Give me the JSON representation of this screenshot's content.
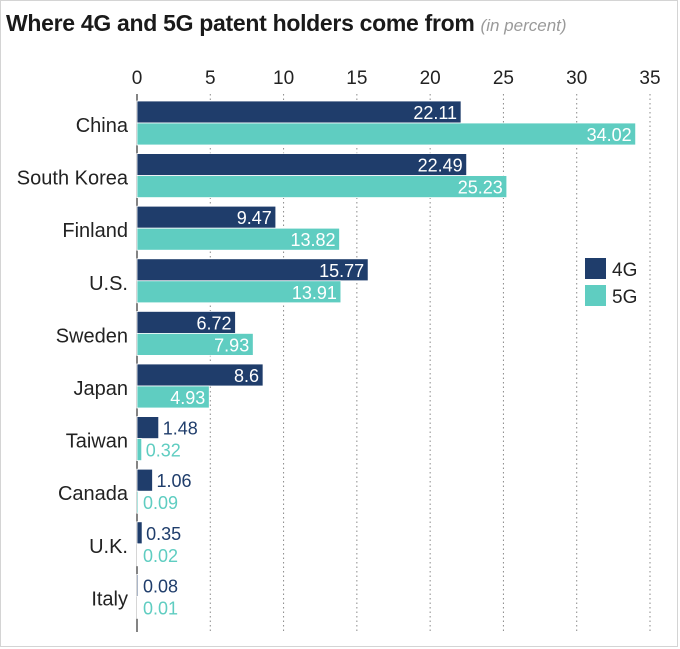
{
  "chart_data": {
    "type": "bar",
    "orientation": "horizontal",
    "title": "Where 4G and 5G patent holders come from",
    "subtitle": "(in percent)",
    "categories": [
      "China",
      "South Korea",
      "Finland",
      "U.S.",
      "Sweden",
      "Japan",
      "Taiwan",
      "Canada",
      "U.K.",
      "Italy"
    ],
    "series": [
      {
        "name": "4G",
        "color": "#1f3d6b",
        "values": [
          22.11,
          22.49,
          9.47,
          15.77,
          6.72,
          8.6,
          1.48,
          1.06,
          0.35,
          0.08
        ],
        "labels": [
          "22.11",
          "22.49",
          "9.47",
          "15.77",
          "6.72",
          "8.6",
          "1.48",
          "1.06",
          "0.35",
          "0.08"
        ]
      },
      {
        "name": "5G",
        "color": "#5fcdc1",
        "values": [
          34.02,
          25.23,
          13.82,
          13.91,
          7.93,
          4.93,
          0.32,
          0.09,
          0.02,
          0.01
        ],
        "labels": [
          "34.02",
          "25.23",
          "13.82",
          "13.91",
          "7.93",
          "4.93",
          "0.32",
          "0.09",
          "0.02",
          "0.01"
        ]
      }
    ],
    "xlim": [
      0,
      35
    ],
    "xticks": [
      "0",
      "5",
      "10",
      "15",
      "20",
      "25",
      "30",
      "35"
    ],
    "grid": "vertical dotted",
    "axis_position": "top",
    "legend_position": "right"
  }
}
